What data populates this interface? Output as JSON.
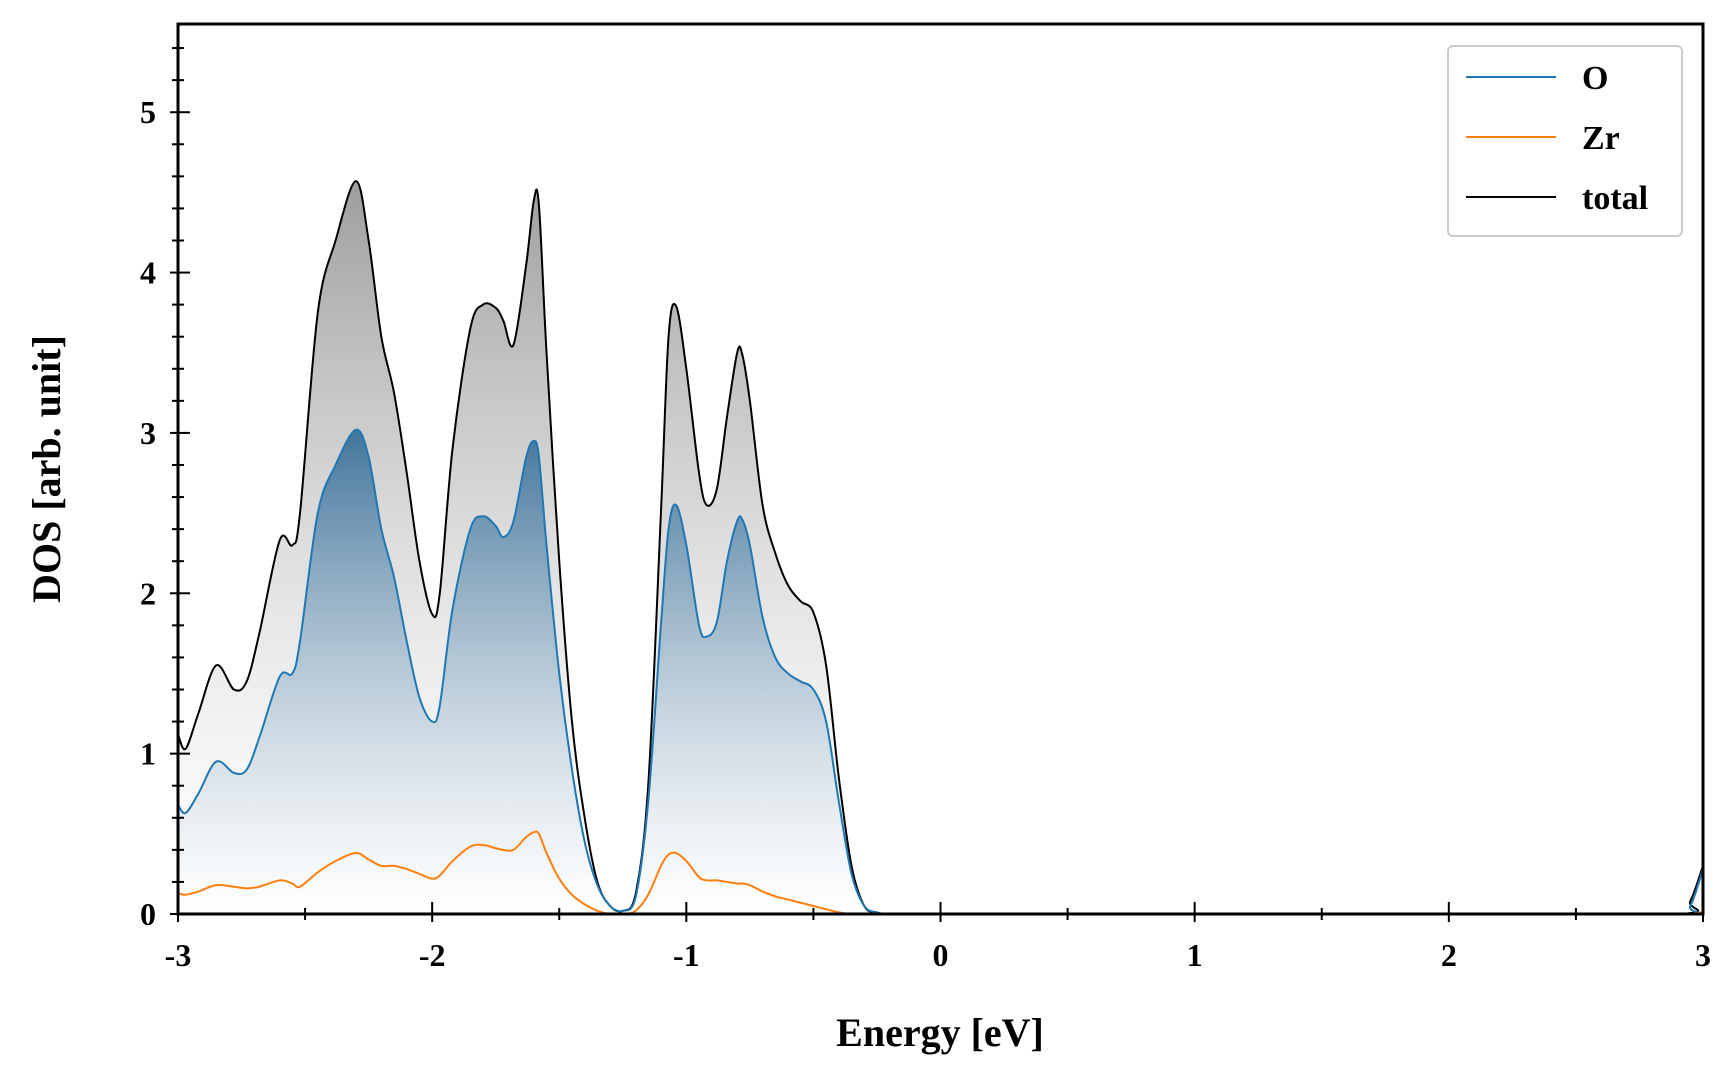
{
  "chart_data": {
    "type": "area",
    "xlabel": "Energy [eV]",
    "ylabel": "DOS [arb. unit]",
    "xlim": [
      -3,
      3
    ],
    "ylim": [
      0,
      5.55
    ],
    "xticks": [
      "-3",
      "-2",
      "-1",
      "0",
      "1",
      "2",
      "3"
    ],
    "yticks": [
      "0",
      "1",
      "2",
      "3",
      "4",
      "5"
    ],
    "grid": false,
    "legend_position": "top-right",
    "x": [
      -3.0,
      -2.97,
      -2.92,
      -2.85,
      -2.78,
      -2.73,
      -2.68,
      -2.6,
      -2.55,
      -2.52,
      -2.45,
      -2.38,
      -2.3,
      -2.25,
      -2.2,
      -2.15,
      -2.1,
      -2.05,
      -2.0,
      -1.97,
      -1.92,
      -1.85,
      -1.8,
      -1.75,
      -1.72,
      -1.68,
      -1.63,
      -1.6,
      -1.58,
      -1.55,
      -1.5,
      -1.45,
      -1.4,
      -1.35,
      -1.3,
      -1.25,
      -1.2,
      -1.15,
      -1.1,
      -1.07,
      -1.04,
      -1.0,
      -0.95,
      -0.92,
      -0.88,
      -0.84,
      -0.8,
      -0.78,
      -0.75,
      -0.7,
      -0.65,
      -0.6,
      -0.55,
      -0.5,
      -0.45,
      -0.4,
      -0.35,
      -0.3,
      -0.25,
      -0.2,
      0.0,
      1.0,
      2.0,
      2.9,
      2.95,
      3.0
    ],
    "series": [
      {
        "name": "O",
        "color": "#1f77b4",
        "values": [
          0.68,
          0.63,
          0.75,
          0.95,
          0.88,
          0.9,
          1.1,
          1.48,
          1.5,
          1.7,
          2.5,
          2.8,
          3.02,
          2.85,
          2.4,
          2.1,
          1.7,
          1.35,
          1.2,
          1.3,
          1.9,
          2.4,
          2.48,
          2.42,
          2.35,
          2.45,
          2.85,
          2.95,
          2.85,
          2.3,
          1.5,
          0.9,
          0.45,
          0.18,
          0.05,
          0.02,
          0.1,
          0.7,
          1.8,
          2.4,
          2.55,
          2.3,
          1.8,
          1.73,
          1.82,
          2.2,
          2.45,
          2.46,
          2.3,
          1.85,
          1.6,
          1.5,
          1.45,
          1.4,
          1.2,
          0.7,
          0.25,
          0.05,
          0.01,
          0.0,
          0.0,
          0.0,
          0.0,
          0.0,
          0.05,
          0.28
        ]
      },
      {
        "name": "Zr",
        "color": "#ff7f0e",
        "values": [
          0.13,
          0.12,
          0.14,
          0.18,
          0.17,
          0.16,
          0.17,
          0.21,
          0.19,
          0.17,
          0.26,
          0.33,
          0.38,
          0.34,
          0.3,
          0.3,
          0.28,
          0.25,
          0.22,
          0.24,
          0.33,
          0.42,
          0.43,
          0.41,
          0.4,
          0.4,
          0.48,
          0.51,
          0.5,
          0.38,
          0.22,
          0.12,
          0.06,
          0.02,
          0.0,
          0.0,
          0.02,
          0.12,
          0.3,
          0.37,
          0.38,
          0.33,
          0.23,
          0.21,
          0.21,
          0.2,
          0.19,
          0.19,
          0.18,
          0.14,
          0.11,
          0.09,
          0.07,
          0.05,
          0.03,
          0.01,
          0.0,
          0.0,
          0.0,
          0.0,
          0.0,
          0.0,
          0.0,
          0.0,
          0.0,
          0.01
        ]
      },
      {
        "name": "total",
        "color": "#000000",
        "values": [
          1.12,
          1.03,
          1.25,
          1.55,
          1.4,
          1.45,
          1.75,
          2.33,
          2.3,
          2.5,
          3.75,
          4.2,
          4.57,
          4.2,
          3.6,
          3.25,
          2.75,
          2.2,
          1.87,
          2.0,
          2.9,
          3.65,
          3.8,
          3.78,
          3.7,
          3.55,
          4.05,
          4.45,
          4.42,
          3.5,
          2.2,
          1.2,
          0.6,
          0.2,
          0.05,
          0.02,
          0.12,
          0.8,
          2.5,
          3.6,
          3.79,
          3.4,
          2.75,
          2.55,
          2.65,
          3.1,
          3.5,
          3.49,
          3.2,
          2.55,
          2.25,
          2.05,
          1.95,
          1.88,
          1.55,
          0.85,
          0.3,
          0.05,
          0.01,
          0.0,
          0.0,
          0.0,
          0.0,
          0.0,
          0.08,
          0.3
        ]
      }
    ]
  }
}
